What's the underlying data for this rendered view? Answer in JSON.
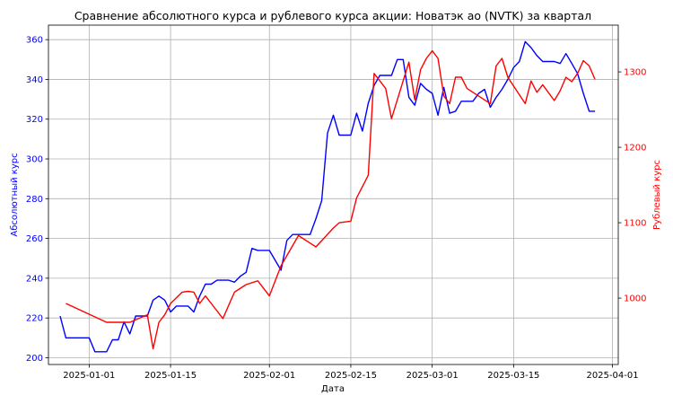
{
  "chart_data": {
    "type": "line",
    "title": "Сравнение абсолютного курса и рублевого курса акции: Новатэк ао (NVTK) за квартал",
    "xlabel": "Дата",
    "ylabel_left": "Абсолютный курс",
    "ylabel_right": "Рублевый курс",
    "x_ticks": [
      "2025-01-01",
      "2025-01-15",
      "2025-02-01",
      "2025-02-15",
      "2025-03-01",
      "2025-03-15",
      "2025-04-01"
    ],
    "y_left_ticks": [
      200,
      220,
      240,
      260,
      280,
      300,
      320,
      340,
      360
    ],
    "y_right_ticks": [
      1000,
      1100,
      1200,
      1300
    ],
    "ylim_left": [
      196.6,
      367.3
    ],
    "ylim_right": [
      912,
      1362
    ],
    "xlim": [
      "2024-12-25",
      "2025-04-02"
    ],
    "grid": true,
    "series": [
      {
        "axis": "left",
        "color": "#0000ff",
        "x": [
          "2024-12-27",
          "2024-12-28",
          "2024-12-29",
          "2024-12-30",
          "2024-12-31",
          "2025-01-01",
          "2025-01-02",
          "2025-01-03",
          "2025-01-04",
          "2025-01-05",
          "2025-01-06",
          "2025-01-07",
          "2025-01-08",
          "2025-01-09",
          "2025-01-10",
          "2025-01-11",
          "2025-01-12",
          "2025-01-13",
          "2025-01-14",
          "2025-01-15",
          "2025-01-16",
          "2025-01-17",
          "2025-01-18",
          "2025-01-19",
          "2025-01-20",
          "2025-01-21",
          "2025-01-22",
          "2025-01-23",
          "2025-01-24",
          "2025-01-25",
          "2025-01-26",
          "2025-01-27",
          "2025-01-28",
          "2025-01-29",
          "2025-01-30",
          "2025-01-31",
          "2025-02-01",
          "2025-02-02",
          "2025-02-03",
          "2025-02-04",
          "2025-02-05",
          "2025-02-06",
          "2025-02-07",
          "2025-02-08",
          "2025-02-09",
          "2025-02-10",
          "2025-02-11",
          "2025-02-12",
          "2025-02-13",
          "2025-02-14",
          "2025-02-15",
          "2025-02-16",
          "2025-02-17",
          "2025-02-18",
          "2025-02-19",
          "2025-02-20",
          "2025-02-21",
          "2025-02-22",
          "2025-02-23",
          "2025-02-24",
          "2025-02-25",
          "2025-02-26",
          "2025-02-27",
          "2025-02-28",
          "2025-03-01",
          "2025-03-02",
          "2025-03-03",
          "2025-03-04",
          "2025-03-05",
          "2025-03-06",
          "2025-03-07",
          "2025-03-08",
          "2025-03-09",
          "2025-03-10",
          "2025-03-11",
          "2025-03-12",
          "2025-03-13",
          "2025-03-14",
          "2025-03-15",
          "2025-03-16",
          "2025-03-17",
          "2025-03-18",
          "2025-03-19",
          "2025-03-20",
          "2025-03-21",
          "2025-03-22",
          "2025-03-23",
          "2025-03-24",
          "2025-03-25",
          "2025-03-26",
          "2025-03-27",
          "2025-03-28",
          "2025-03-29"
        ],
        "values": [
          221,
          210,
          210,
          210,
          210,
          210,
          203,
          203,
          203,
          209,
          209,
          218,
          212,
          221,
          221,
          221,
          229,
          231,
          229,
          223,
          226,
          226,
          226,
          223,
          231,
          237,
          237,
          239,
          239,
          239,
          238,
          241,
          243,
          255,
          254,
          254,
          254,
          249,
          244,
          259,
          262,
          262,
          262,
          262,
          270,
          279,
          313,
          322,
          312,
          312,
          312,
          323,
          314,
          328,
          337,
          342,
          342,
          342,
          350,
          350,
          331,
          327,
          338,
          335,
          333,
          322,
          336,
          323,
          324,
          329,
          329,
          329,
          333,
          335,
          326,
          331,
          335,
          340,
          346,
          349,
          359,
          356,
          352,
          349,
          349,
          349,
          348,
          353,
          348,
          343,
          333,
          324,
          324
        ]
      },
      {
        "axis": "right",
        "color": "#ff0000",
        "x": [
          "2024-12-28",
          "2025-01-04",
          "2025-01-08",
          "2025-01-11",
          "2025-01-12",
          "2025-01-13",
          "2025-01-14",
          "2025-01-15",
          "2025-01-17",
          "2025-01-18",
          "2025-01-19",
          "2025-01-20",
          "2025-01-21",
          "2025-01-22",
          "2025-01-24",
          "2025-01-26",
          "2025-01-28",
          "2025-01-30",
          "2025-02-01",
          "2025-02-03",
          "2025-02-06",
          "2025-02-07",
          "2025-02-08",
          "2025-02-09",
          "2025-02-12",
          "2025-02-13",
          "2025-02-14",
          "2025-02-15",
          "2025-02-16",
          "2025-02-18",
          "2025-02-19",
          "2025-02-21",
          "2025-02-22",
          "2025-02-25",
          "2025-02-26",
          "2025-02-27",
          "2025-02-28",
          "2025-03-01",
          "2025-03-02",
          "2025-03-03",
          "2025-03-04",
          "2025-03-05",
          "2025-03-06",
          "2025-03-07",
          "2025-03-11",
          "2025-03-12",
          "2025-03-13",
          "2025-03-14",
          "2025-03-17",
          "2025-03-18",
          "2025-03-19",
          "2025-03-20",
          "2025-03-22",
          "2025-03-23",
          "2025-03-24",
          "2025-03-25",
          "2025-03-26",
          "2025-03-27",
          "2025-03-28",
          "2025-03-29"
        ],
        "values": [
          993,
          968,
          968,
          978,
          933,
          968,
          978,
          993,
          1008,
          1009,
          1008,
          993,
          1003,
          993,
          973,
          1008,
          1018,
          1023,
          1003,
          1043,
          1083,
          1078,
          1073,
          1068,
          1093,
          1100,
          1101,
          1102,
          1133,
          1163,
          1298,
          1278,
          1238,
          1313,
          1263,
          1303,
          1318,
          1328,
          1318,
          1268,
          1258,
          1293,
          1293,
          1278,
          1258,
          1308,
          1318,
          1293,
          1258,
          1288,
          1273,
          1283,
          1262,
          1275,
          1293,
          1287,
          1298,
          1315,
          1308,
          1290
        ]
      }
    ]
  }
}
